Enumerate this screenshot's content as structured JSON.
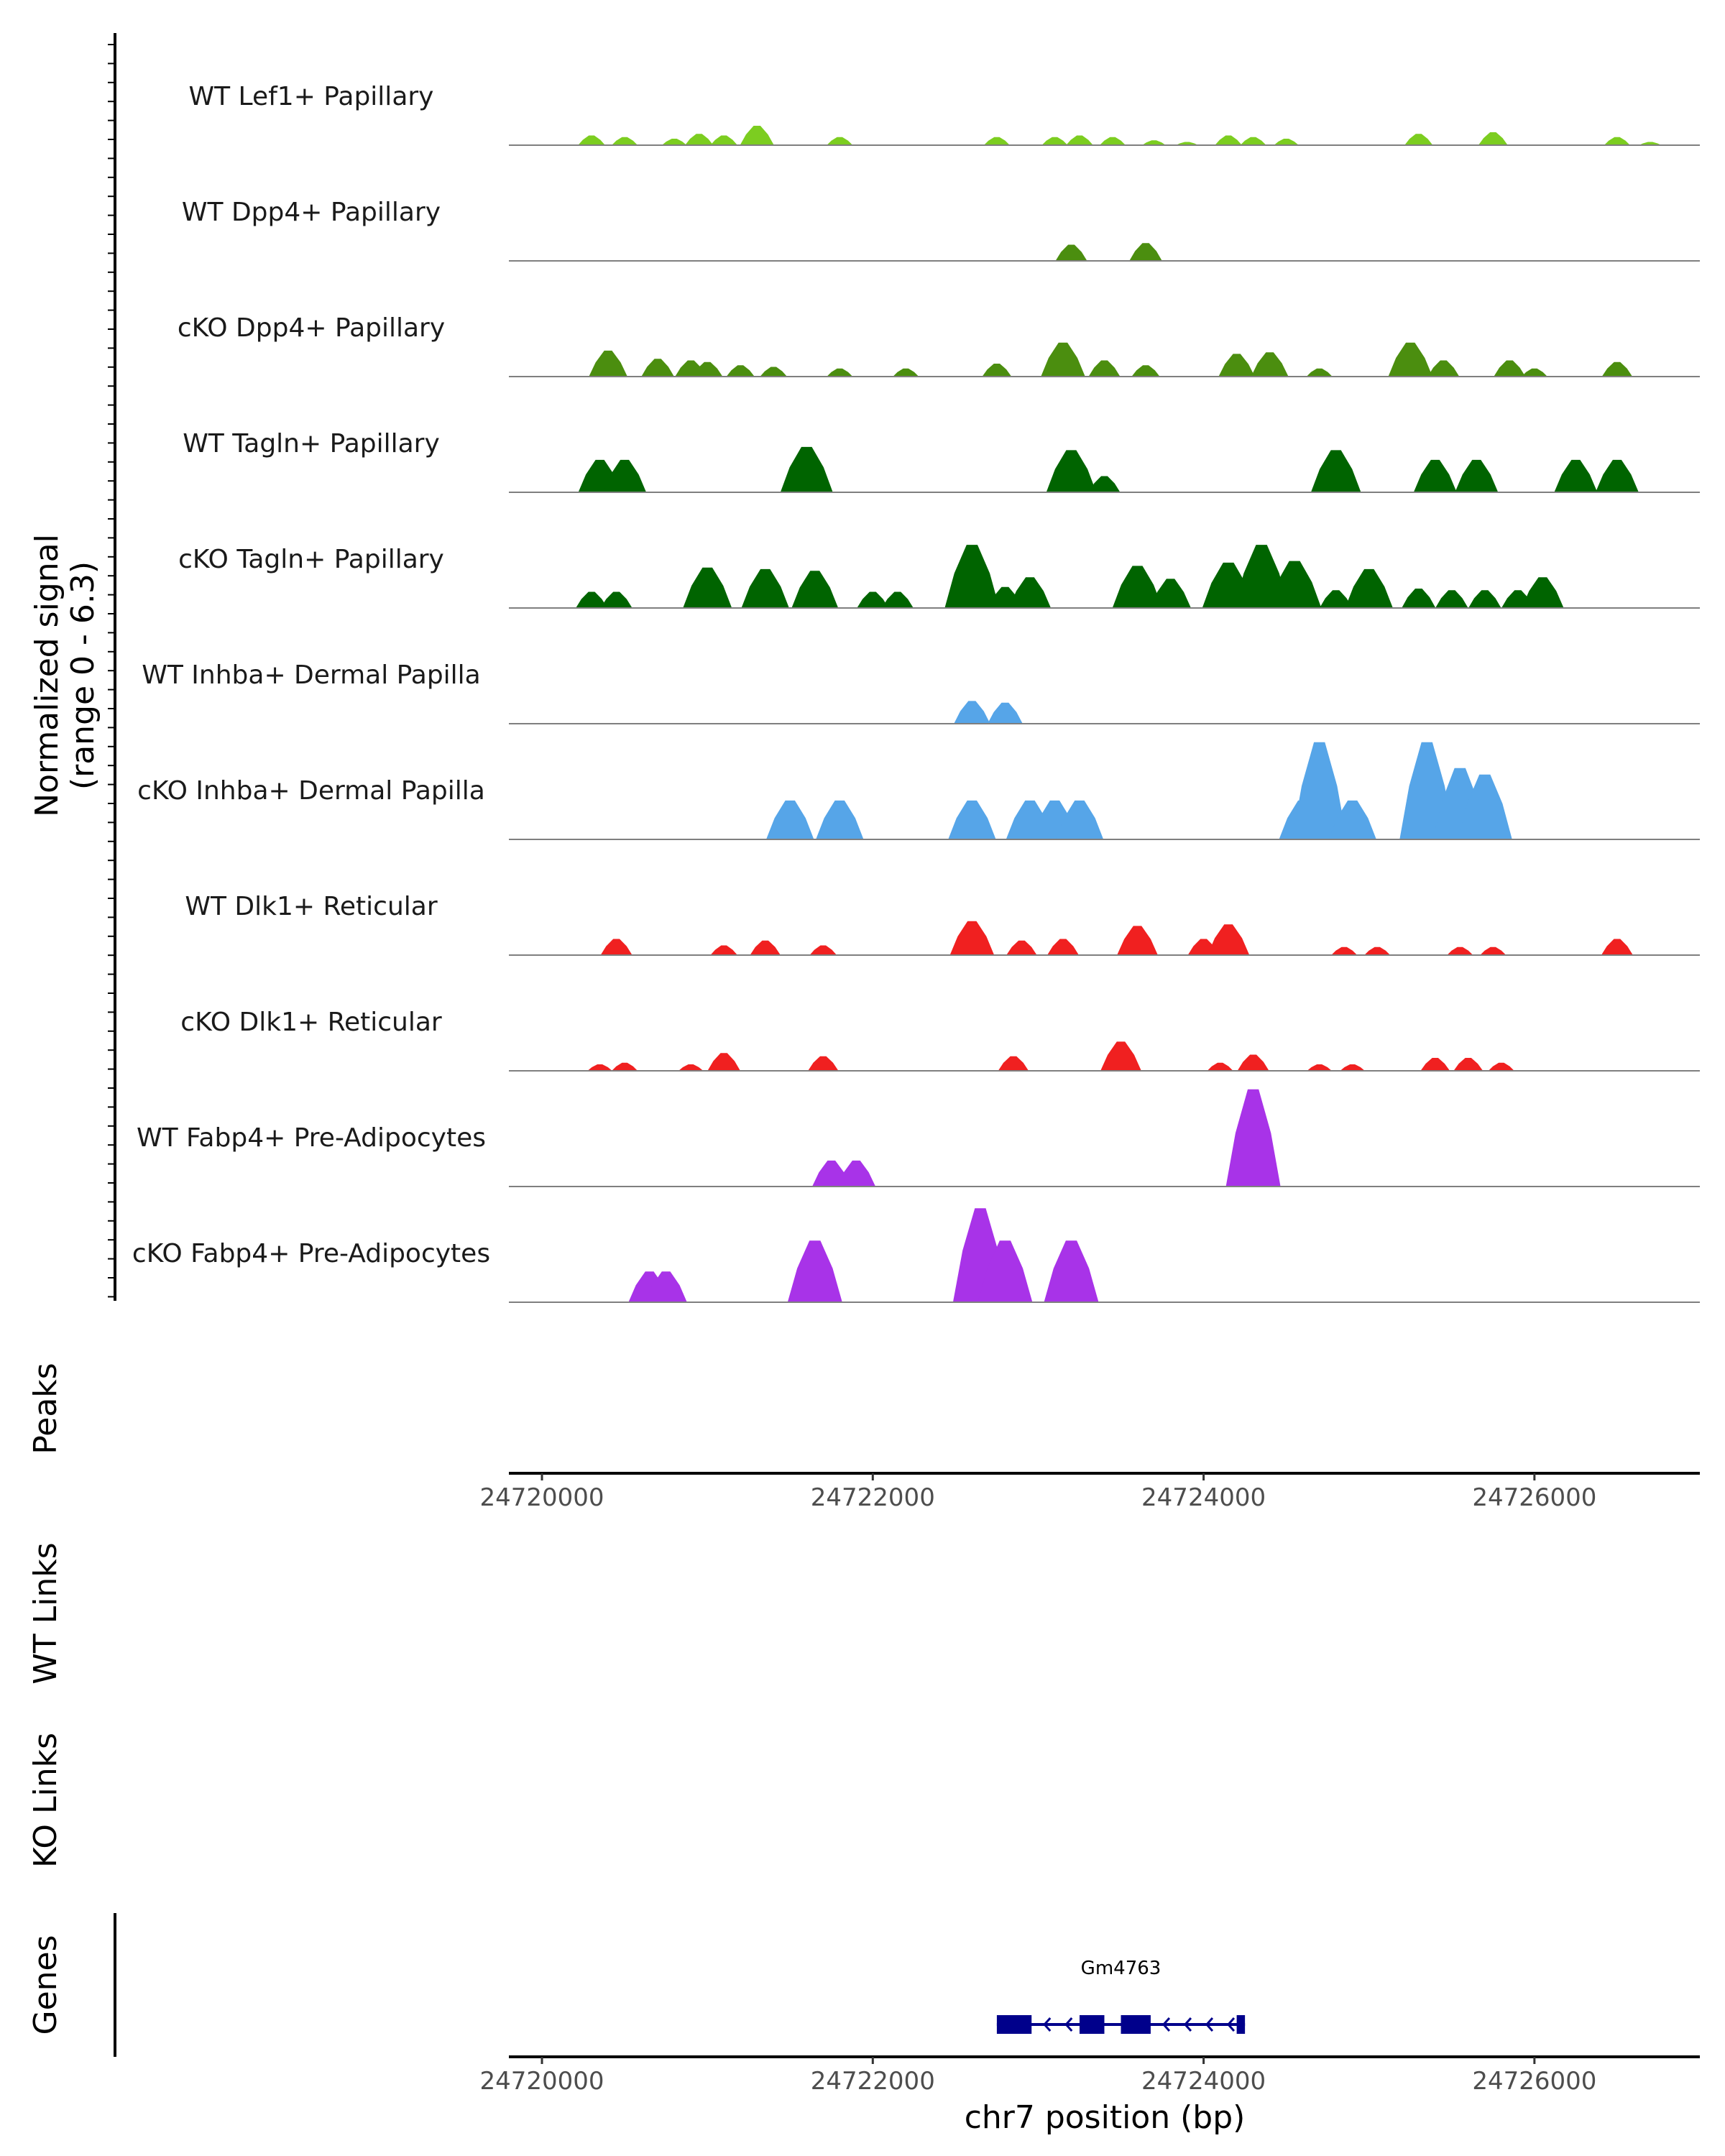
{
  "chart_data": {
    "type": "area",
    "title": "",
    "region": {
      "chrom": "chr7",
      "start": 24719800,
      "end": 24727000
    },
    "xlabel": "chr7 position (bp)",
    "ylabel": "Normalized signal",
    "ylabel_sub": "(range 0 - 6.3)",
    "ylim": [
      0,
      6.3
    ],
    "x_ticks": [
      24720000,
      24722000,
      24724000,
      24726000
    ],
    "x_tick_labels": [
      "24720000",
      "24722000",
      "24724000",
      "24726000"
    ],
    "side_titles": {
      "peaks": "Peaks",
      "wt_links": "WT Links",
      "ko_links": "KO Links",
      "genes": "Genes"
    },
    "tracks": [
      {
        "name": "WT Lef1+ Papillary",
        "color": "#7ccd20",
        "peaks": [
          [
            24720300,
            0.6
          ],
          [
            24720500,
            0.5
          ],
          [
            24720800,
            0.4
          ],
          [
            24720950,
            0.7
          ],
          [
            24721100,
            0.6
          ],
          [
            24721300,
            1.2
          ],
          [
            24721800,
            0.5
          ],
          [
            24722750,
            0.5
          ],
          [
            24723100,
            0.5
          ],
          [
            24723250,
            0.6
          ],
          [
            24723450,
            0.5
          ],
          [
            24723700,
            0.3
          ],
          [
            24723900,
            0.2
          ],
          [
            24724150,
            0.6
          ],
          [
            24724300,
            0.5
          ],
          [
            24724500,
            0.4
          ],
          [
            24725300,
            0.7
          ],
          [
            24725750,
            0.8
          ],
          [
            24726500,
            0.5
          ],
          [
            24726700,
            0.2
          ]
        ]
      },
      {
        "name": "WT Dpp4+ Papillary",
        "color": "#4b8e0f",
        "peaks": [
          [
            24723200,
            1.0
          ],
          [
            24723650,
            1.1
          ]
        ]
      },
      {
        "name": "cKO Dpp4+ Papillary",
        "color": "#4b8e0f",
        "peaks": [
          [
            24720400,
            1.6
          ],
          [
            24720700,
            1.1
          ],
          [
            24720900,
            1.0
          ],
          [
            24721000,
            0.9
          ],
          [
            24721200,
            0.7
          ],
          [
            24721400,
            0.6
          ],
          [
            24721800,
            0.5
          ],
          [
            24722200,
            0.5
          ],
          [
            24722750,
            0.8
          ],
          [
            24723150,
            2.1
          ],
          [
            24723400,
            1.0
          ],
          [
            24723650,
            0.7
          ],
          [
            24724200,
            1.4
          ],
          [
            24724400,
            1.5
          ],
          [
            24724700,
            0.5
          ],
          [
            24725250,
            2.1
          ],
          [
            24725450,
            1.0
          ],
          [
            24725850,
            1.0
          ],
          [
            24726000,
            0.5
          ],
          [
            24726500,
            0.9
          ]
        ]
      },
      {
        "name": "WT Tagln+ Papillary",
        "color": "#006400",
        "peaks": [
          [
            24720350,
            2.0
          ],
          [
            24720500,
            2.0
          ],
          [
            24721600,
            2.8
          ],
          [
            24723200,
            2.6
          ],
          [
            24723400,
            1.0
          ],
          [
            24724800,
            2.6
          ],
          [
            24725400,
            2.0
          ],
          [
            24725650,
            2.0
          ],
          [
            24726250,
            2.0
          ],
          [
            24726500,
            2.0
          ]
        ]
      },
      {
        "name": "cKO Tagln+ Papillary",
        "color": "#006400",
        "peaks": [
          [
            24720300,
            1.0
          ],
          [
            24720450,
            1.0
          ],
          [
            24721000,
            2.5
          ],
          [
            24721350,
            2.4
          ],
          [
            24721650,
            2.3
          ],
          [
            24722000,
            1.0
          ],
          [
            24722150,
            1.0
          ],
          [
            24722600,
            3.9
          ],
          [
            24722800,
            1.3
          ],
          [
            24722950,
            1.9
          ],
          [
            24723600,
            2.6
          ],
          [
            24723800,
            1.8
          ],
          [
            24724150,
            2.8
          ],
          [
            24724350,
            3.9
          ],
          [
            24724550,
            2.9
          ],
          [
            24724800,
            1.1
          ],
          [
            24725000,
            2.4
          ],
          [
            24725300,
            1.2
          ],
          [
            24725500,
            1.1
          ],
          [
            24725700,
            1.1
          ],
          [
            24725900,
            1.1
          ],
          [
            24726050,
            1.9
          ]
        ]
      },
      {
        "name": "WT Inhba+ Dermal Papilla",
        "color": "#56a5e8",
        "peaks": [
          [
            24722600,
            1.4
          ],
          [
            24722800,
            1.3
          ]
        ]
      },
      {
        "name": "cKO Inhba+ Dermal Papilla",
        "color": "#56a5e8",
        "peaks": [
          [
            24721500,
            2.4
          ],
          [
            24721800,
            2.4
          ],
          [
            24722600,
            2.4
          ],
          [
            24722950,
            2.4
          ],
          [
            24723100,
            2.4
          ],
          [
            24723250,
            2.4
          ],
          [
            24724600,
            2.4
          ],
          [
            24724700,
            6.0
          ],
          [
            24724900,
            2.4
          ],
          [
            24725350,
            6.0
          ],
          [
            24725550,
            4.4
          ],
          [
            24725700,
            4.0
          ]
        ]
      },
      {
        "name": "WT Dlk1+ Reticular",
        "color": "#f02020",
        "peaks": [
          [
            24720450,
            1.0
          ],
          [
            24721100,
            0.6
          ],
          [
            24721350,
            0.9
          ],
          [
            24721700,
            0.6
          ],
          [
            24722600,
            2.1
          ],
          [
            24722900,
            0.9
          ],
          [
            24723150,
            1.0
          ],
          [
            24723600,
            1.8
          ],
          [
            24724000,
            1.0
          ],
          [
            24724150,
            1.9
          ],
          [
            24724850,
            0.5
          ],
          [
            24725050,
            0.5
          ],
          [
            24725550,
            0.5
          ],
          [
            24725750,
            0.5
          ],
          [
            24726500,
            1.0
          ]
        ]
      },
      {
        "name": "cKO Dlk1+ Reticular",
        "color": "#f02020",
        "peaks": [
          [
            24720350,
            0.4
          ],
          [
            24720500,
            0.5
          ],
          [
            24720900,
            0.4
          ],
          [
            24721100,
            1.1
          ],
          [
            24721700,
            0.9
          ],
          [
            24722850,
            0.9
          ],
          [
            24723500,
            1.8
          ],
          [
            24724100,
            0.5
          ],
          [
            24724300,
            1.0
          ],
          [
            24724700,
            0.4
          ],
          [
            24724900,
            0.4
          ],
          [
            24725400,
            0.8
          ],
          [
            24725600,
            0.8
          ],
          [
            24725800,
            0.5
          ]
        ]
      },
      {
        "name": "WT Fabp4+ Pre-Adipocytes",
        "color": "#a833e8",
        "peaks": [
          [
            24721750,
            1.6
          ],
          [
            24721900,
            1.6
          ],
          [
            24724300,
            6.0
          ]
        ]
      },
      {
        "name": "cKO Fabp4+ Pre-Adipocytes",
        "color": "#a833e8",
        "peaks": [
          [
            24720650,
            1.9
          ],
          [
            24720750,
            1.9
          ],
          [
            24721650,
            3.8
          ],
          [
            24722650,
            5.8
          ],
          [
            24722800,
            3.8
          ],
          [
            24723200,
            3.8
          ]
        ]
      }
    ],
    "genes": [
      {
        "name": "Gm4763",
        "start": 24722750,
        "end": 24724250,
        "strand": "-",
        "exons": [
          [
            24722750,
            24722960
          ],
          [
            24723250,
            24723400
          ],
          [
            24723500,
            24723680
          ],
          [
            24724200,
            24724250
          ]
        ]
      }
    ]
  }
}
